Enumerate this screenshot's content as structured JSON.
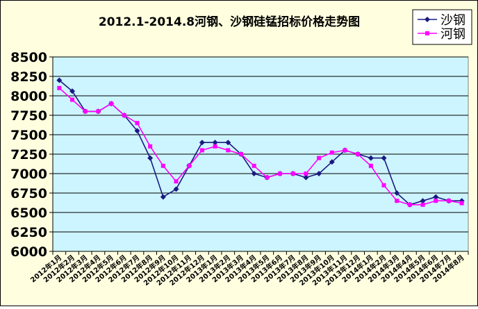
{
  "chart_data": {
    "type": "line",
    "title": "2012.1-2014.8河钢、沙钢硅锰招标价格走势图",
    "xlabel": "",
    "ylabel": "",
    "ylim": [
      6000,
      8500
    ],
    "yticks": [
      "6000",
      "6250",
      "6500",
      "6750",
      "7000",
      "7250",
      "7500",
      "7750",
      "8000",
      "8250",
      "8500"
    ],
    "grid": true,
    "legend": "top-right",
    "categories": [
      "2012年1月",
      "2012年2月",
      "2012年3月",
      "2012年4月",
      "2012年5月",
      "2012年6月",
      "2012年7月",
      "2012年8月",
      "2012年9月",
      "2012年10月",
      "2012年11月",
      "2012年12月",
      "2013年1月",
      "2013年2月",
      "2013年3月",
      "2013年4月",
      "2013年5月",
      "2013年6月",
      "2013年7月",
      "2013年8月",
      "2013年9月",
      "2013年10月",
      "2013年11月",
      "2013年12月",
      "2014年1月",
      "2014年2月",
      "2014年3月",
      "2014年4月",
      "2014年5月",
      "2014年6月",
      "2014年7月",
      "2014年8月"
    ],
    "series": [
      {
        "name": "沙钢",
        "color": "#1a1a80",
        "marker": "diamond",
        "values": [
          8200,
          8060,
          7800,
          7800,
          7900,
          7750,
          7550,
          7200,
          6700,
          6800,
          7100,
          7400,
          7400,
          7400,
          7250,
          7000,
          6950,
          7000,
          7000,
          6950,
          7000,
          7150,
          7300,
          7250,
          7200,
          7200,
          6750,
          6600,
          6650,
          6700,
          6650,
          6650
        ]
      },
      {
        "name": "河钢",
        "color": "#ff00ff",
        "marker": "square",
        "values": [
          8100,
          7950,
          7800,
          7800,
          7900,
          7750,
          7650,
          7350,
          7100,
          6900,
          7100,
          7300,
          7350,
          7300,
          7250,
          7100,
          6950,
          7000,
          7000,
          7000,
          7200,
          7270,
          7300,
          7250,
          7100,
          6850,
          6650,
          6600,
          6600,
          6650,
          6650,
          6620
        ]
      }
    ]
  },
  "colors": {
    "page_bg": "#ffffe0",
    "plot_bg": "#cdf5ff",
    "plot_border": "#808080",
    "axis": "#000000"
  }
}
